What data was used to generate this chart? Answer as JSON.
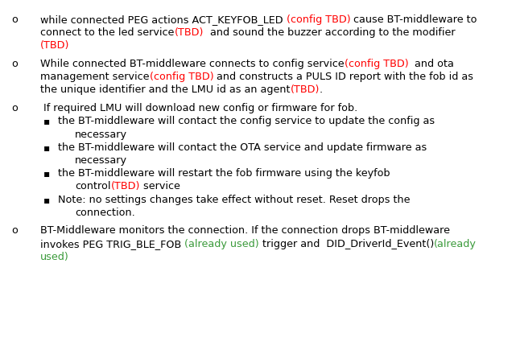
{
  "bg_color": "#ffffff",
  "text_color": "#000000",
  "red_color": "#ff0000",
  "green_color": "#3a9a3a",
  "figsize": [
    6.46,
    4.45
  ],
  "dpi": 100,
  "font_size": 9.2,
  "lines": [
    {
      "type": "bullet_o",
      "indent": 0,
      "segments": [
        {
          "text": "while connected PEG actions ACT_KEYFOB_LED ",
          "color": "black"
        },
        {
          "text": "(config TBD)",
          "color": "red"
        },
        {
          "text": " cause BT-middleware to",
          "color": "black"
        }
      ]
    },
    {
      "type": "continuation",
      "indent": 1,
      "segments": [
        {
          "text": "connect to the led service",
          "color": "black"
        },
        {
          "text": "(TBD)",
          "color": "red"
        },
        {
          "text": "  and sound the buzzer according to the modifier",
          "color": "black"
        }
      ]
    },
    {
      "type": "continuation",
      "indent": 1,
      "segments": [
        {
          "text": "(TBD)",
          "color": "red"
        }
      ]
    },
    {
      "type": "blank",
      "indent": 0,
      "segments": []
    },
    {
      "type": "bullet_o",
      "indent": 0,
      "segments": [
        {
          "text": "While connected BT-middleware connects to config service",
          "color": "black"
        },
        {
          "text": "(config TBD)",
          "color": "red"
        },
        {
          "text": "  and ota",
          "color": "black"
        }
      ]
    },
    {
      "type": "continuation",
      "indent": 1,
      "segments": [
        {
          "text": "management service",
          "color": "black"
        },
        {
          "text": "(config TBD)",
          "color": "red"
        },
        {
          "text": " and constructs a PULS ID report with the fob id as",
          "color": "black"
        }
      ]
    },
    {
      "type": "continuation",
      "indent": 1,
      "segments": [
        {
          "text": "the unique identifier and the LMU id as an agent",
          "color": "black"
        },
        {
          "text": "(TBD)",
          "color": "red"
        },
        {
          "text": ".",
          "color": "black"
        }
      ]
    },
    {
      "type": "blank",
      "indent": 0,
      "segments": []
    },
    {
      "type": "bullet_o",
      "indent": 0,
      "segments": [
        {
          "text": " If required LMU will download new config or firmware for fob.",
          "color": "black"
        }
      ]
    },
    {
      "type": "bullet_sq",
      "indent": 0,
      "segments": [
        {
          "text": "the BT-middleware will contact the config service to update the config as",
          "color": "black"
        }
      ]
    },
    {
      "type": "continuation",
      "indent": 2,
      "segments": [
        {
          "text": "necessary",
          "color": "black"
        }
      ]
    },
    {
      "type": "bullet_sq",
      "indent": 0,
      "segments": [
        {
          "text": "the BT-middleware will contact the OTA service and update firmware as",
          "color": "black"
        }
      ]
    },
    {
      "type": "continuation",
      "indent": 2,
      "segments": [
        {
          "text": "necessary",
          "color": "black"
        }
      ]
    },
    {
      "type": "bullet_sq",
      "indent": 0,
      "segments": [
        {
          "text": "the BT-middleware will restart the fob firmware using the keyfob",
          "color": "black"
        }
      ]
    },
    {
      "type": "continuation",
      "indent": 2,
      "segments": [
        {
          "text": "control",
          "color": "black"
        },
        {
          "text": "(TBD)",
          "color": "red"
        },
        {
          "text": " service",
          "color": "black"
        }
      ]
    },
    {
      "type": "bullet_sq",
      "indent": 0,
      "segments": [
        {
          "text": "Note: no settings changes take effect without reset. Reset drops the",
          "color": "black"
        }
      ]
    },
    {
      "type": "continuation",
      "indent": 2,
      "segments": [
        {
          "text": "connection.",
          "color": "black"
        }
      ]
    },
    {
      "type": "blank",
      "indent": 0,
      "segments": []
    },
    {
      "type": "bullet_o",
      "indent": 0,
      "segments": [
        {
          "text": "BT-Middleware monitors the connection. If the connection drops BT-middleware",
          "color": "black"
        }
      ]
    },
    {
      "type": "continuation",
      "indent": 1,
      "segments": [
        {
          "text": "invokes PEG TRIG_BLE_FOB ",
          "color": "black"
        },
        {
          "text": "(already used)",
          "color": "green"
        },
        {
          "text": " trigger and  DID_DriverId_Event()",
          "color": "black"
        },
        {
          "text": "(already",
          "color": "green"
        }
      ]
    },
    {
      "type": "continuation",
      "indent": 1,
      "segments": [
        {
          "text": "used)",
          "color": "green"
        }
      ]
    }
  ]
}
